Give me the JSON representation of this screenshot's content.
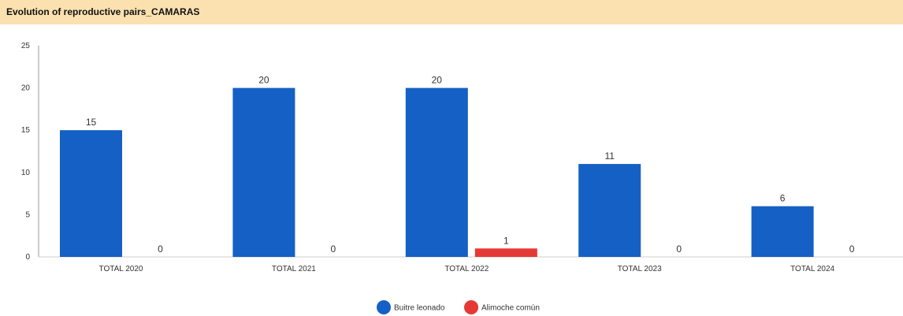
{
  "header": {
    "title": "Evolution of reproductive pairs_CAMARAS"
  },
  "colors": {
    "header_bg": "#fbe0b0",
    "grid": "#e6e6e6",
    "axis": "#999999"
  },
  "chart_data": {
    "type": "bar",
    "title": "Evolution of reproductive pairs_CAMARAS",
    "xlabel": "",
    "ylabel": "",
    "categories": [
      "TOTAL 2020",
      "TOTAL 2021",
      "TOTAL 2022",
      "TOTAL 2023",
      "TOTAL 2024"
    ],
    "series": [
      {
        "name": "Buitre leonado",
        "color": "#1560c4",
        "values": [
          15,
          20,
          20,
          11,
          6
        ]
      },
      {
        "name": "Alimoche común",
        "color": "#e53935",
        "values": [
          0,
          0,
          1,
          0,
          0
        ]
      }
    ],
    "ylim": [
      0,
      25
    ],
    "yticks": [
      0,
      5,
      10,
      15,
      20,
      25
    ],
    "grid": false,
    "legend": "bottom",
    "data_labels": true
  }
}
